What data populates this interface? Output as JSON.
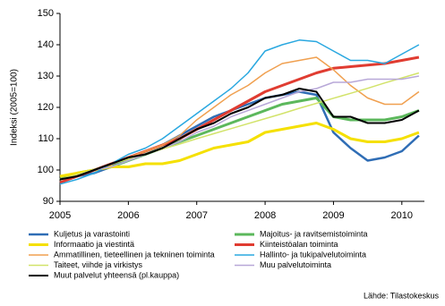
{
  "chart_data": {
    "type": "line",
    "ylabel": "Indeksi (2005=100)",
    "source": "Lähde: Tilastokeskus",
    "x": [
      2005,
      2005.25,
      2005.5,
      2005.75,
      2006,
      2006.25,
      2006.5,
      2006.75,
      2007,
      2007.25,
      2007.5,
      2007.75,
      2008,
      2008.25,
      2008.5,
      2008.75,
      2009,
      2009.25,
      2009.5,
      2009.75,
      2010,
      2010.25
    ],
    "xlim": [
      2005,
      2010.33
    ],
    "xticks": [
      2005,
      2006,
      2007,
      2008,
      2009,
      2010
    ],
    "ylim": [
      90,
      150
    ],
    "yticks": [
      90,
      100,
      110,
      120,
      130,
      140,
      150
    ],
    "grid": false,
    "legend": "bottom",
    "series": [
      {
        "name": "Kuljetus ja varastointi",
        "color": "#2f6db5",
        "width": 2.5,
        "values": [
          96,
          98,
          99,
          101,
          104,
          106,
          108,
          111,
          114,
          117,
          119,
          121,
          123,
          124,
          125,
          124,
          112,
          107,
          103,
          104,
          106,
          111
        ]
      },
      {
        "name": "Majoitus- ja ravitsemistoiminta",
        "color": "#5cb85c",
        "width": 3,
        "values": [
          97,
          99,
          100,
          101,
          103,
          105,
          107,
          109,
          111,
          113,
          115,
          117,
          119,
          121,
          122,
          123,
          117,
          116,
          116,
          116,
          117,
          119
        ]
      },
      {
        "name": "Informaatio ja viestintä",
        "color": "#f5e000",
        "width": 3,
        "values": [
          98,
          99,
          100,
          101,
          101,
          102,
          102,
          103,
          105,
          107,
          108,
          109,
          112,
          113,
          114,
          115,
          113,
          110,
          109,
          109,
          110,
          112
        ]
      },
      {
        "name": "Kiinteistöalan toiminta",
        "color": "#e03c31",
        "width": 3,
        "values": [
          96,
          98,
          100,
          102,
          104,
          106,
          108,
          110,
          113,
          116,
          119,
          122,
          125,
          127,
          129,
          131,
          132.5,
          133,
          133.5,
          134,
          135,
          136
        ]
      },
      {
        "name": "Ammatillinen, tieteellinen ja tekninen toiminta",
        "color": "#f0a050",
        "width": 1.5,
        "values": [
          97,
          98,
          100,
          102,
          104,
          106,
          108,
          111,
          116,
          120,
          124,
          127,
          131,
          134,
          135,
          136,
          132,
          127,
          123,
          121,
          121,
          125
        ]
      },
      {
        "name": "Hallinto- ja tukipalvelutoiminta",
        "color": "#2aa8e0",
        "width": 1.5,
        "values": [
          95.5,
          97,
          99,
          102,
          105,
          107,
          110,
          114,
          118,
          122,
          126,
          131,
          138,
          140,
          141.5,
          141,
          138,
          135,
          135,
          134,
          137,
          140
        ]
      },
      {
        "name": "Taiteet, viihde ja virkistys",
        "color": "#d2e36a",
        "width": 1.5,
        "values": [
          97,
          98.6,
          100.2,
          101.9,
          103.5,
          105.1,
          106.7,
          108.3,
          110,
          111.6,
          113.2,
          114.8,
          116.4,
          118,
          119.7,
          121.3,
          122.9,
          124.5,
          126.1,
          127.8,
          129.4,
          131
        ]
      },
      {
        "name": "Muu palvelutoiminta",
        "color": "#b8a8d8",
        "width": 1.5,
        "values": [
          97,
          98,
          100,
          101,
          103,
          105,
          107,
          109,
          112,
          114,
          117,
          119,
          121,
          123,
          125,
          126,
          128,
          128,
          129,
          129,
          129,
          130
        ]
      },
      {
        "name": "Muut palvelut yhteensä (pl.kauppa)",
        "color": "#000000",
        "width": 2,
        "values": [
          97,
          98,
          100,
          102,
          104,
          105,
          107,
          110,
          113,
          115,
          118,
          120,
          123,
          124,
          126,
          125,
          117,
          117,
          115,
          115,
          116,
          119
        ]
      }
    ]
  }
}
